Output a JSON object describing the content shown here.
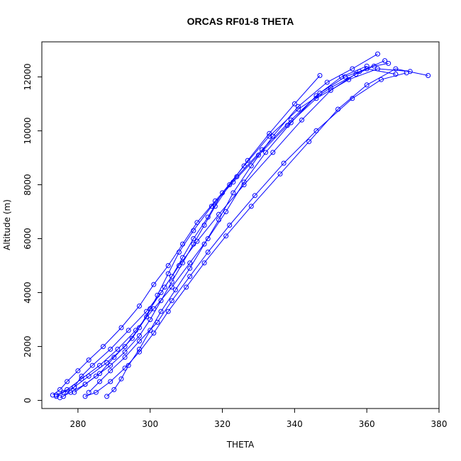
{
  "chart_data": {
    "type": "line",
    "title": "ORCAS RF01-8 THETA",
    "xlabel": "THETA",
    "ylabel": "Altitude (m)",
    "xlim": [
      270,
      380
    ],
    "ylim": [
      -300,
      13300
    ],
    "x_ticks": [
      280,
      300,
      320,
      340,
      360,
      380
    ],
    "y_ticks": [
      0,
      2000,
      4000,
      6000,
      8000,
      10000,
      12000
    ],
    "grid": false,
    "color": "#0000ff",
    "marker": "open-circle",
    "series": [
      {
        "x": [
          274,
          276,
          279,
          281,
          284,
          289,
          294,
          299,
          303,
          306,
          309,
          312,
          316,
          320,
          326,
          333,
          341,
          350,
          357,
          362,
          366
        ],
        "y": [
          150,
          300,
          500,
          900,
          1300,
          1900,
          2600,
          3300,
          4000,
          4600,
          5300,
          6000,
          6800,
          7700,
          8700,
          9800,
          10800,
          11600,
          12100,
          12400,
          12500
        ]
      },
      {
        "x": [
          273,
          275,
          277,
          280,
          283,
          287,
          292,
          297,
          301,
          305,
          309,
          313,
          318,
          324,
          331,
          339,
          347,
          354,
          360,
          368
        ],
        "y": [
          200,
          400,
          700,
          1100,
          1500,
          2000,
          2700,
          3500,
          4300,
          5000,
          5800,
          6600,
          7400,
          8300,
          9300,
          10400,
          11400,
          12000,
          12300,
          12100
        ]
      },
      {
        "x": [
          275,
          278,
          282,
          286,
          290,
          295,
          299,
          302,
          305,
          308,
          312,
          317,
          323,
          330,
          338,
          346,
          355,
          363,
          372
        ],
        "y": [
          100,
          300,
          600,
          1000,
          1600,
          2300,
          3100,
          3900,
          4700,
          5500,
          6300,
          7200,
          8100,
          9100,
          10200,
          11200,
          11900,
          12300,
          12200
        ]
      },
      {
        "x": [
          276,
          279,
          283,
          288,
          293,
          297,
          300,
          304,
          308,
          313,
          319,
          326,
          334,
          342,
          350,
          358,
          365
        ],
        "y": [
          150,
          500,
          900,
          1400,
          2000,
          2700,
          3400,
          4200,
          5000,
          5900,
          6900,
          8000,
          9200,
          10400,
          11500,
          12200,
          12600
        ]
      },
      {
        "x": [
          282,
          285,
          289,
          293,
          297,
          301,
          305,
          310,
          315,
          321,
          328,
          336,
          344,
          352,
          360,
          368,
          377
        ],
        "y": [
          150,
          300,
          700,
          1200,
          1800,
          2500,
          3300,
          4200,
          5100,
          6100,
          7200,
          8400,
          9600,
          10800,
          11700,
          12300,
          12050
        ]
      },
      {
        "x": [
          274,
          277,
          281,
          286,
          291,
          296,
          301,
          306,
          311,
          316,
          321,
          326,
          332,
          339,
          346,
          353,
          360
        ],
        "y": [
          200,
          400,
          800,
          1300,
          1900,
          2600,
          3400,
          4200,
          5100,
          6000,
          7000,
          8100,
          9200,
          10300,
          11300,
          12000,
          12400
        ]
      },
      {
        "x": [
          288,
          290,
          292,
          294,
          297,
          300,
          303,
          307,
          311,
          315,
          319,
          323,
          328,
          334,
          341,
          349,
          356,
          363
        ],
        "y": [
          150,
          400,
          800,
          1300,
          1900,
          2600,
          3300,
          4100,
          4900,
          5800,
          6700,
          7700,
          8700,
          9800,
          10900,
          11800,
          12300,
          12850
        ]
      },
      {
        "x": [
          283,
          286,
          289,
          293,
          297,
          302,
          306,
          311,
          316,
          322,
          329,
          337,
          346,
          356,
          364,
          371
        ],
        "y": [
          300,
          700,
          1100,
          1600,
          2200,
          2900,
          3700,
          4600,
          5500,
          6500,
          7600,
          8800,
          10000,
          11200,
          11900,
          12150
        ]
      },
      {
        "x": [
          279,
          282,
          285,
          289,
          293,
          297,
          300,
          303,
          306,
          309,
          312,
          315,
          318,
          322,
          327,
          333,
          340,
          347
        ],
        "y": [
          300,
          600,
          900,
          1300,
          1800,
          2400,
          3000,
          3700,
          4400,
          5100,
          5800,
          6500,
          7200,
          8000,
          8900,
          9900,
          11000,
          12050
        ]
      }
    ]
  }
}
